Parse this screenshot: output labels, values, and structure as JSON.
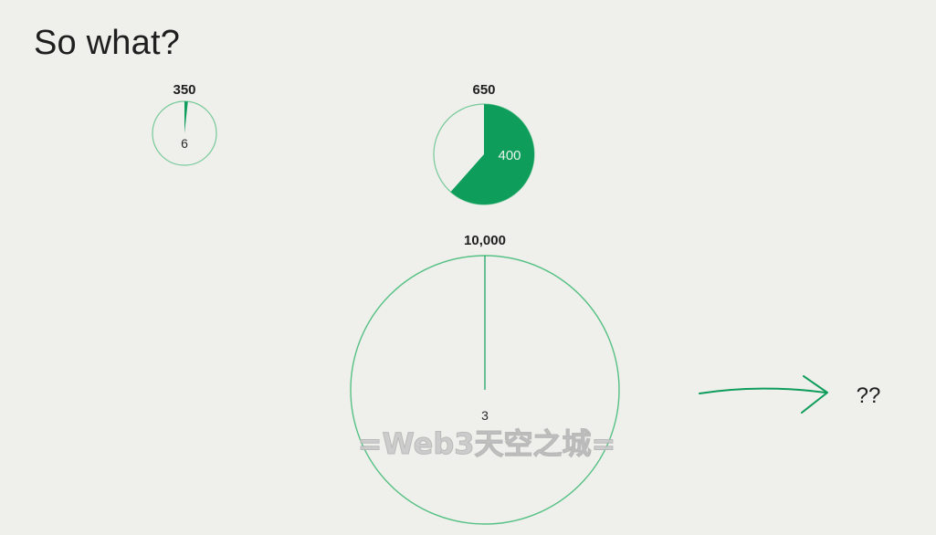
{
  "title": "So what?",
  "colors": {
    "accent": "#0f9d5c",
    "outline": "#56c184",
    "background": "#efefeb",
    "text": "#1f1f1f"
  },
  "chart_data": [
    {
      "type": "pie",
      "total": 350,
      "total_label": "350",
      "part": 6,
      "part_label": "6"
    },
    {
      "type": "pie",
      "total": 650,
      "total_label": "650",
      "part": 400,
      "part_label": "400"
    },
    {
      "type": "pie",
      "total": 10000,
      "total_label": "10,000",
      "part": 3,
      "part_label": "3"
    }
  ],
  "annotation": {
    "arrow_icon": "arrow-right-icon",
    "label": "??"
  },
  "watermark": "=Web3天空之城="
}
